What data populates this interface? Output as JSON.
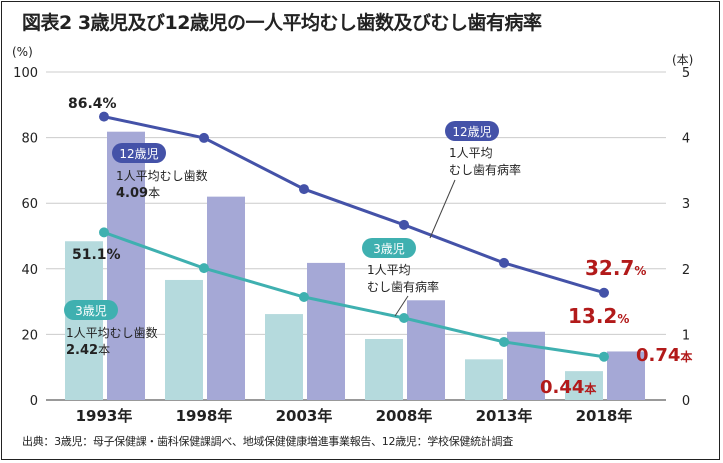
{
  "title": "図表2 3歳児及び12歳児の一人平均むし歯数及びむし歯有病率",
  "source": "出典：3歳児：母子保健課・歯科保健課調べ、地域保健健康増進事業報告、12歳児：学校保健統計調査",
  "chart_data": {
    "type": "bar+line",
    "categories": [
      "1993年",
      "1998年",
      "2003年",
      "2008年",
      "2013年",
      "2018年"
    ],
    "left_axis": {
      "label": "(%)",
      "range": [
        0,
        100
      ],
      "ticks": [
        "0",
        "20",
        "40",
        "60",
        "80",
        "100"
      ]
    },
    "right_axis": {
      "label": "(本)",
      "range": [
        0,
        5
      ],
      "ticks": [
        "0",
        "1",
        "2",
        "3",
        "4",
        "5"
      ]
    },
    "grid": true,
    "bars": [
      {
        "name": "3歳児 1人平均むし歯数",
        "axis": "right",
        "color": "#b5dadd",
        "values": [
          2.42,
          1.83,
          1.31,
          0.93,
          0.62,
          0.44
        ]
      },
      {
        "name": "12歳児 1人平均むし歯数",
        "axis": "right",
        "color": "#a5a8d6",
        "values": [
          4.09,
          3.1,
          2.09,
          1.52,
          1.04,
          0.74
        ]
      }
    ],
    "lines": [
      {
        "name": "12歳児 1人平均むし歯有病率",
        "axis": "left",
        "color": "#4452a8",
        "values": [
          86.4,
          79.9,
          64.3,
          53.4,
          41.8,
          32.7
        ]
      },
      {
        "name": "3歳児 1人平均むし歯有病率",
        "axis": "left",
        "color": "#3fb0b0",
        "values": [
          51.1,
          40.2,
          31.4,
          25.0,
          17.7,
          13.2
        ]
      }
    ],
    "annotations": {
      "l12_start": "86.4%",
      "l3_start": "51.1%",
      "l12_end_num": "32.7",
      "l12_end_unit": "%",
      "l3_end_num": "13.2",
      "l3_end_unit": "%",
      "b12_end_num": "0.74",
      "b12_end_unit": "本",
      "b3_end_num": "0.44",
      "b3_end_unit": "本",
      "badge12_a": "12歳児",
      "text12_a1": "1人平均むし歯数",
      "text12_a2_num": "4.09",
      "text12_a2_unit": "本",
      "badge3_a": "3歳児",
      "text3_a1": "1人平均むし歯数",
      "text3_a2_num": "2.42",
      "text3_a2_unit": "本",
      "badge12_b": "12歳児",
      "text12_b1": "1人平均",
      "text12_b2": "むし歯有病率",
      "badge3_b": "3歳児",
      "text3_b1": "1人平均",
      "text3_b2": "むし歯有病率"
    }
  }
}
